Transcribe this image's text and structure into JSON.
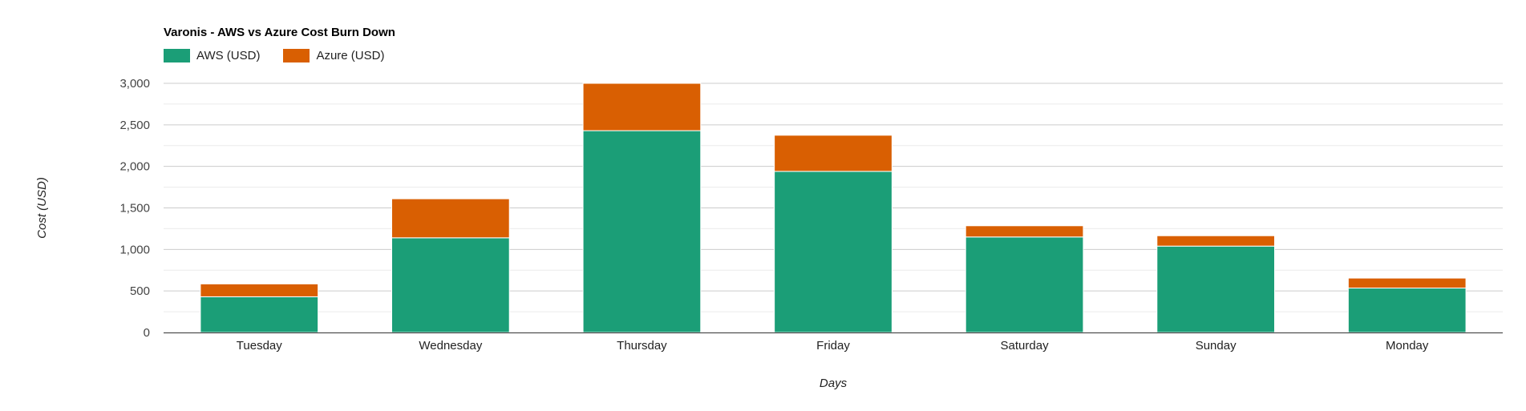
{
  "chart_data": {
    "type": "bar",
    "stacked": true,
    "title": "Varonis - AWS vs Azure Cost Burn Down",
    "xlabel": "Days",
    "ylabel": "Cost (USD)",
    "categories": [
      "Tuesday",
      "Wednesday",
      "Thursday",
      "Friday",
      "Saturday",
      "Sunday",
      "Monday"
    ],
    "series": [
      {
        "name": "AWS (USD)",
        "color": "#1b9e77",
        "values": [
          430,
          1140,
          2430,
          1940,
          1150,
          1040,
          535
        ]
      },
      {
        "name": "Azure (USD)",
        "color": "#d95f02",
        "values": [
          155,
          470,
          570,
          435,
          135,
          125,
          120
        ]
      }
    ],
    "ylim": [
      0,
      3000
    ],
    "yticks": [
      0,
      500,
      1000,
      1500,
      2000,
      2500,
      3000
    ],
    "ytick_labels": [
      "0",
      "500",
      "1,000",
      "1,500",
      "2,000",
      "2,500",
      "3,000"
    ],
    "grid": true,
    "legend_position": "top-left"
  }
}
